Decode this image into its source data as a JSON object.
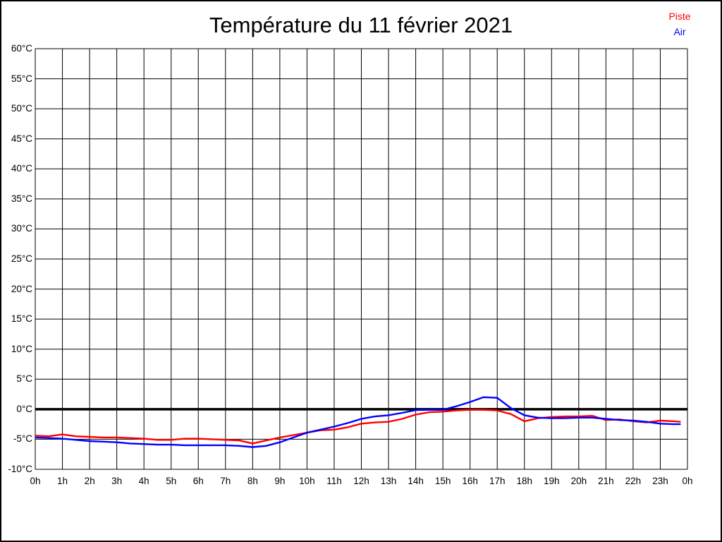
{
  "title": "Température du 11 février 2021",
  "legend": {
    "items": [
      {
        "label": "Piste",
        "color": "#ff0000"
      },
      {
        "label": "Air",
        "color": "#0000ff"
      }
    ]
  },
  "chart_data": {
    "type": "line",
    "title": "Température du 11 février 2021",
    "xlabel": "",
    "ylabel": "",
    "xlim": [
      0,
      24
    ],
    "ylim": [
      -10,
      60
    ],
    "grid": true,
    "zero_line_bold": true,
    "legend_position": "top-right",
    "x_tick_hours": [
      0,
      1,
      2,
      3,
      4,
      5,
      6,
      7,
      8,
      9,
      10,
      11,
      12,
      13,
      14,
      15,
      16,
      17,
      18,
      19,
      20,
      21,
      22,
      23,
      24
    ],
    "x_tick_labels": [
      "0h",
      "1h",
      "2h",
      "3h",
      "4h",
      "5h",
      "6h",
      "7h",
      "8h",
      "9h",
      "10h",
      "11h",
      "12h",
      "13h",
      "14h",
      "15h",
      "16h",
      "17h",
      "18h",
      "19h",
      "20h",
      "21h",
      "22h",
      "23h",
      "0h"
    ],
    "y_tick_values": [
      60,
      55,
      50,
      45,
      40,
      35,
      30,
      25,
      20,
      15,
      10,
      5,
      0,
      -5,
      -10
    ],
    "y_tick_labels": [
      "60°C",
      "55°C",
      "50°C",
      "45°C",
      "40°C",
      "35°C",
      "30°C",
      "25°C",
      "20°C",
      "15°C",
      "10°C",
      "5°C",
      "0°C",
      "-5°C",
      "-10°C"
    ],
    "series": [
      {
        "name": "Piste",
        "color": "#ff0000",
        "x": [
          0,
          0.5,
          1,
          1.5,
          2,
          2.5,
          3,
          3.5,
          4,
          4.5,
          5,
          5.5,
          6,
          6.5,
          7,
          7.5,
          8,
          8.5,
          9,
          9.5,
          10,
          10.5,
          11,
          11.5,
          12,
          12.5,
          13,
          13.5,
          14,
          14.5,
          15,
          15.5,
          16,
          16.5,
          17,
          17.5,
          18,
          18.5,
          19,
          19.5,
          20,
          20.5,
          21,
          21.5,
          22,
          22.5,
          23,
          23.5,
          23.75
        ],
        "values": [
          -4.4,
          -4.5,
          -4.2,
          -4.5,
          -4.6,
          -4.7,
          -4.7,
          -4.8,
          -4.9,
          -5.1,
          -5.1,
          -4.9,
          -4.9,
          -5.0,
          -5.1,
          -5.2,
          -5.7,
          -5.2,
          -4.7,
          -4.3,
          -3.9,
          -3.5,
          -3.4,
          -3.0,
          -2.4,
          -2.2,
          -2.1,
          -1.6,
          -0.9,
          -0.5,
          -0.4,
          -0.2,
          -0.1,
          -0.1,
          -0.2,
          -0.8,
          -2.0,
          -1.5,
          -1.3,
          -1.2,
          -1.2,
          -1.1,
          -1.8,
          -1.7,
          -2.0,
          -2.2,
          -1.9,
          -2.0,
          -2.1
        ]
      },
      {
        "name": "Air",
        "color": "#0000ff",
        "x": [
          0,
          0.5,
          1,
          1.5,
          2,
          2.5,
          3,
          3.5,
          4,
          4.5,
          5,
          5.5,
          6,
          6.5,
          7,
          7.5,
          8,
          8.5,
          9,
          9.5,
          10,
          10.5,
          11,
          11.5,
          12,
          12.5,
          13,
          13.5,
          14,
          14.5,
          15,
          15.5,
          16,
          16.5,
          17,
          17.5,
          18,
          18.5,
          19,
          19.5,
          20,
          20.5,
          21,
          21.5,
          22,
          22.5,
          23,
          23.5,
          23.75
        ],
        "values": [
          -4.7,
          -4.8,
          -4.9,
          -5.1,
          -5.3,
          -5.4,
          -5.5,
          -5.7,
          -5.8,
          -5.9,
          -5.9,
          -6.0,
          -6.0,
          -6.0,
          -6.0,
          -6.1,
          -6.3,
          -6.1,
          -5.5,
          -4.7,
          -3.9,
          -3.4,
          -2.9,
          -2.3,
          -1.6,
          -1.2,
          -1.0,
          -0.6,
          -0.15,
          -0.1,
          -0.1,
          0.5,
          1.2,
          2.0,
          1.9,
          0.2,
          -1.0,
          -1.4,
          -1.5,
          -1.5,
          -1.4,
          -1.4,
          -1.6,
          -1.8,
          -1.9,
          -2.1,
          -2.4,
          -2.5,
          -2.5
        ]
      }
    ]
  }
}
